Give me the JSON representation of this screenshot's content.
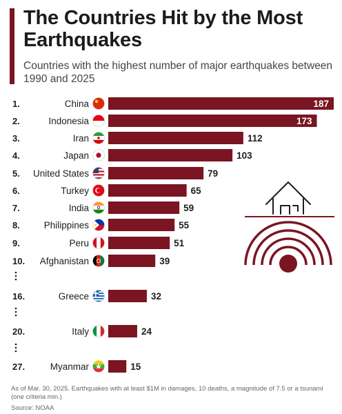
{
  "header": {
    "title": "The Countries Hit by the Most Earthquakes",
    "subtitle": "Countries with the highest number of major earthquakes between 1990 and 2025"
  },
  "footer": {
    "note": "As of Mar. 30, 2025. Earthquakes with at least $1M in damages, 10 deaths, a magnitude of 7.5 or a tsunami (one criteria min.)",
    "source": "Source: NOAA"
  },
  "colors": {
    "bar": "#7a1521",
    "accent": "#7a1521",
    "text": "#1d1d1d"
  },
  "chart_data": {
    "type": "bar",
    "orientation": "horizontal",
    "title": "The Countries Hit by the Most Earthquakes",
    "subtitle": "Countries with the highest number of major earthquakes between 1990 and 2025",
    "xlim": [
      0,
      187
    ],
    "grid": false,
    "legend": "none",
    "rows": [
      {
        "rank": "1.",
        "country": "China",
        "value": 187,
        "flag": "china-flag"
      },
      {
        "rank": "2.",
        "country": "Indonesia",
        "value": 173,
        "flag": "indonesia-flag"
      },
      {
        "rank": "3.",
        "country": "Iran",
        "value": 112,
        "flag": "iran-flag"
      },
      {
        "rank": "4.",
        "country": "Japan",
        "value": 103,
        "flag": "japan-flag"
      },
      {
        "rank": "5.",
        "country": "United States",
        "value": 79,
        "flag": "usa-flag"
      },
      {
        "rank": "6.",
        "country": "Turkey",
        "value": 65,
        "flag": "turkey-flag"
      },
      {
        "rank": "7.",
        "country": "India",
        "value": 59,
        "flag": "india-flag"
      },
      {
        "rank": "8.",
        "country": "Philippines",
        "value": 55,
        "flag": "philippines-flag"
      },
      {
        "rank": "9.",
        "country": "Peru",
        "value": 51,
        "flag": "peru-flag"
      },
      {
        "rank": "10.",
        "country": "Afghanistan",
        "value": 39,
        "flag": "afghanistan-flag"
      },
      {
        "rank": "16.",
        "country": "Greece",
        "value": 32,
        "flag": "greece-flag"
      },
      {
        "rank": "20.",
        "country": "Italy",
        "value": 24,
        "flag": "italy-flag"
      },
      {
        "rank": "27.",
        "country": "Myanmar",
        "value": 15,
        "flag": "myanmar-flag"
      }
    ]
  },
  "illustration": {
    "icon": "earthquake-house-icon"
  }
}
